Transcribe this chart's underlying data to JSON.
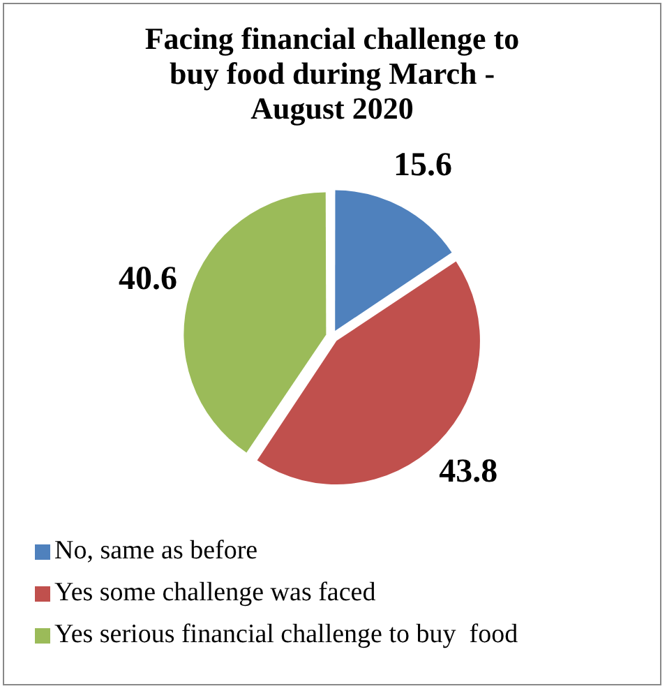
{
  "chart_data": {
    "type": "pie",
    "title": "Facing financial challenge to buy food during March - August 2020",
    "categories": [
      "No, same as before",
      "Yes some challenge was faced",
      "Yes serious financial challenge to buy  food"
    ],
    "values": [
      15.6,
      43.8,
      40.6
    ],
    "colors": [
      "#4f81bd",
      "#c0504d",
      "#9bbb59"
    ],
    "data_labels": true,
    "legend": "bottom"
  }
}
